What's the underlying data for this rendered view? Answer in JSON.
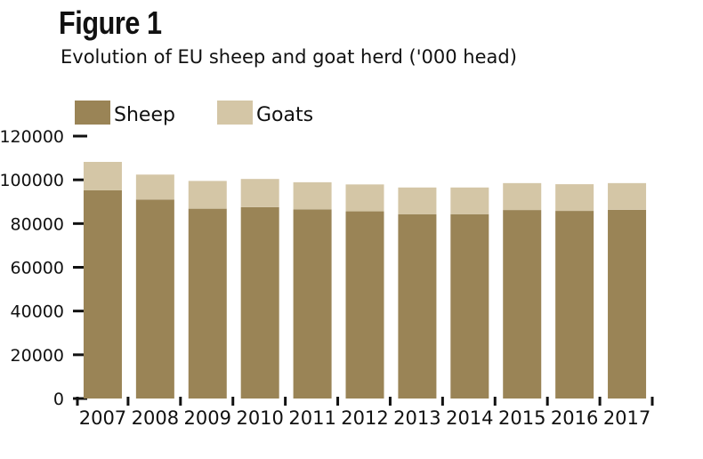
{
  "header": {
    "title": "Figure 1",
    "subtitle": "Evolution of EU sheep and goat herd ('000 head)"
  },
  "chart_data": {
    "type": "bar",
    "stacked": true,
    "categories": [
      "2007",
      "2008",
      "2009",
      "2010",
      "2011",
      "2012",
      "2013",
      "2014",
      "2015",
      "2016",
      "2017"
    ],
    "series": [
      {
        "name": "Sheep",
        "color": "#9a8456",
        "values": [
          95200,
          91000,
          86800,
          87500,
          86500,
          85600,
          84300,
          84300,
          86200,
          85800,
          86300
        ]
      },
      {
        "name": "Goats",
        "color": "#d4c6a6",
        "values": [
          13000,
          11400,
          12700,
          12900,
          12400,
          12300,
          12200,
          12200,
          12300,
          12200,
          12200
        ]
      }
    ],
    "ylim": [
      0,
      120000
    ],
    "yticks": [
      "0",
      "20000",
      "40000",
      "60000",
      "80000",
      "100000",
      "120000"
    ],
    "xlabel": "",
    "ylabel": "",
    "legend_position": "top-left",
    "grid": false
  }
}
